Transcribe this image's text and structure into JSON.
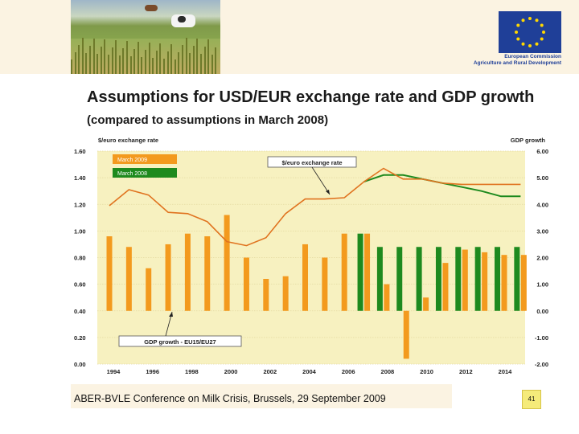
{
  "header": {
    "logo_line1": "European Commission",
    "logo_line2": "Agriculture and Rural Development",
    "photo_icon": "cows-in-meadow-photo",
    "logo_icon": "eu-flag-icon"
  },
  "slide": {
    "title_main": "Assumptions for USD/EUR exchange rate and GDP growth",
    "title_sub": "(compared to assumptions in March 2008)",
    "footer": "ABER-BVLE Conference on Milk Crisis, Brussels, 29 September 2009",
    "page_number": "41"
  },
  "chart_data": {
    "type": "bar+line",
    "ylabel_left": "$/euro exchange rate",
    "ylabel_right": "GDP growth",
    "ylim_left": [
      0,
      1.6
    ],
    "ylim_right": [
      -2,
      6
    ],
    "yticks_left": [
      "1.60",
      "1.40",
      "1.20",
      "1.00",
      "0.80",
      "0.60",
      "0.40",
      "0.20",
      "0.00"
    ],
    "yticks_right": [
      "6.00",
      "5.00",
      "4.00",
      "3.00",
      "2.00",
      "1.00",
      "0.00",
      "-1.00",
      "-2.00"
    ],
    "xticks": [
      "1994",
      "1996",
      "1998",
      "2000",
      "2002",
      "2004",
      "2006",
      "2008",
      "2010",
      "2012",
      "2014"
    ],
    "legend": [
      "March 2009",
      "March 2008"
    ],
    "annotations": [
      "$/euro exchange rate",
      "GDP growth - EU15/EU27"
    ],
    "colors": {
      "march_2009": "#f39a1e",
      "march_2008": "#1e8a1e",
      "exchange_line": "#e0731f",
      "plot_bg": "#f7f1c0",
      "grid": "#e4d9a0"
    },
    "gdp_bars": [
      {
        "year": 1994,
        "series": "March 2009",
        "value": 2.8
      },
      {
        "year": 1995,
        "series": "March 2009",
        "value": 2.4
      },
      {
        "year": 1996,
        "series": "March 2009",
        "value": 1.6
      },
      {
        "year": 1997,
        "series": "March 2009",
        "value": 2.5
      },
      {
        "year": 1998,
        "series": "March 2009",
        "value": 2.9
      },
      {
        "year": 1999,
        "series": "March 2009",
        "value": 2.8
      },
      {
        "year": 2000,
        "series": "March 2009",
        "value": 3.6
      },
      {
        "year": 2001,
        "series": "March 2009",
        "value": 2.0
      },
      {
        "year": 2002,
        "series": "March 2009",
        "value": 1.2
      },
      {
        "year": 2003,
        "series": "March 2009",
        "value": 1.3
      },
      {
        "year": 2004,
        "series": "March 2009",
        "value": 2.5
      },
      {
        "year": 2005,
        "series": "March 2009",
        "value": 2.0
      },
      {
        "year": 2006,
        "series": "March 2009",
        "value": 2.9
      },
      {
        "year": 2007,
        "series": "March 2008",
        "value": 2.9
      },
      {
        "year": 2007,
        "series": "March 2009",
        "value": 2.9
      },
      {
        "year": 2008,
        "series": "March 2008",
        "value": 2.4
      },
      {
        "year": 2008,
        "series": "March 2009",
        "value": 1.0
      },
      {
        "year": 2009,
        "series": "March 2008",
        "value": 2.4
      },
      {
        "year": 2009,
        "series": "March 2009",
        "value": -1.8
      },
      {
        "year": 2010,
        "series": "March 2008",
        "value": 2.4
      },
      {
        "year": 2010,
        "series": "March 2009",
        "value": 0.5
      },
      {
        "year": 2011,
        "series": "March 2008",
        "value": 2.4
      },
      {
        "year": 2011,
        "series": "March 2009",
        "value": 1.8
      },
      {
        "year": 2012,
        "series": "March 2008",
        "value": 2.4
      },
      {
        "year": 2012,
        "series": "March 2009",
        "value": 2.3
      },
      {
        "year": 2013,
        "series": "March 2008",
        "value": 2.4
      },
      {
        "year": 2013,
        "series": "March 2009",
        "value": 2.2
      },
      {
        "year": 2014,
        "series": "March 2008",
        "value": 2.4
      },
      {
        "year": 2014,
        "series": "March 2009",
        "value": 2.1
      },
      {
        "year": 2015,
        "series": "March 2008",
        "value": 2.4
      },
      {
        "year": 2015,
        "series": "March 2009",
        "value": 2.1
      }
    ],
    "exchange_march_2009": {
      "x": [
        1994,
        1995,
        1996,
        1997,
        1998,
        1999,
        2000,
        2001,
        2002,
        2003,
        2004,
        2005,
        2006,
        2007,
        2008,
        2009,
        2010,
        2011,
        2012,
        2013,
        2014,
        2015
      ],
      "y": [
        1.19,
        1.31,
        1.27,
        1.14,
        1.13,
        1.07,
        0.92,
        0.89,
        0.95,
        1.13,
        1.24,
        1.24,
        1.25,
        1.37,
        1.47,
        1.39,
        1.39,
        1.36,
        1.35,
        1.35,
        1.35,
        1.35
      ]
    },
    "exchange_march_2008": {
      "x": [
        2007,
        2008,
        2009,
        2010,
        2011,
        2012,
        2013,
        2014,
        2015
      ],
      "y": [
        1.37,
        1.42,
        1.42,
        1.39,
        1.36,
        1.33,
        1.3,
        1.26,
        1.26
      ]
    }
  }
}
